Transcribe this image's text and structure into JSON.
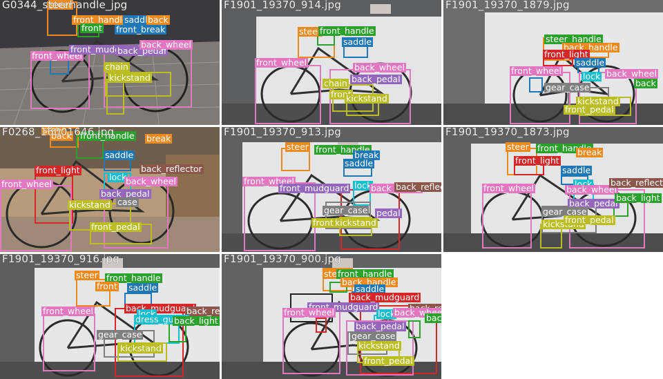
{
  "colors": {
    "steer": "#ef8a1f",
    "front_handle": "#2ca02c",
    "back_handle": "#ef8a1f",
    "saddle": "#1f77b4",
    "front_wheel": "#e377c2",
    "back_wheel": "#e377c2",
    "front_mudguard": "#9467bd",
    "back_mudguard": "#d62728",
    "front_pedal": "#bcbd22",
    "back_pedal": "#9467bd",
    "kickstand": "#bcbd22",
    "chain": "#bcbd22",
    "gear_case": "#7f7f7f",
    "lock": "#17becf",
    "front_light": "#d62728",
    "back_light": "#2ca02c",
    "back_reflector": "#8c564b",
    "back_break": "#1f77b4",
    "front_break": "#1f77b4",
    "dress_guard": "#17becf"
  },
  "tiles": [
    {
      "filename": "G0344_steerhandle_jpg",
      "scene": "street",
      "labels": [
        "steer",
        "front_handle",
        "saddle",
        "front",
        "back",
        "front_break",
        "front_wheel",
        "front_mudguard",
        "back_pedal",
        "back_wheel",
        "chain",
        "kickstand"
      ]
    },
    {
      "filename": "F1901_19370_914.jpg",
      "scene": "wall",
      "labels": [
        "steer",
        "front_handle",
        "saddle",
        "front_wheel",
        "back_wheel",
        "chain",
        "back_pedal",
        "front",
        "kickstand"
      ]
    },
    {
      "filename": "F1901_19370_1879.jpg",
      "scene": "wall",
      "labels": [
        "steer_handle",
        "back_handle",
        "front_light",
        "saddle",
        "front_wheel",
        "lock",
        "back_wheel",
        "back",
        "gear_case",
        "kickstand",
        "front_pedal"
      ]
    },
    {
      "filename": "F0268_16001646.jpg",
      "scene": "shop",
      "labels": [
        "steer",
        "back",
        "front_handle",
        "break",
        "saddle",
        "front_light",
        "back_reflector",
        "front_wheel",
        "lock",
        "back_wheel",
        "kickstand",
        "back_pedal",
        "case",
        "front_pedal"
      ]
    },
    {
      "filename": "F1901_19370_913.jpg",
      "scene": "wall",
      "labels": [
        "steer",
        "front_handle",
        "break",
        "saddle",
        "front_wheel",
        "front_mudguard",
        "lock",
        "back_wheel",
        "back_reflector",
        "gear_case",
        "front",
        "kickstand",
        "pedal"
      ]
    },
    {
      "filename": "F1901_19370_1873.jpg",
      "scene": "wall",
      "labels": [
        "steer",
        "front_handle",
        "front_light",
        "break",
        "saddle",
        "front_wheel",
        "lock",
        "back_wheel",
        "back_reflector",
        "back_pedal",
        "back_light",
        "gear_case",
        "kickstand",
        "front_pedal"
      ]
    },
    {
      "filename": "F1901_19370_916.jpg",
      "scene": "wall",
      "labels": [
        "steer",
        "front_handle",
        "front",
        "saddle",
        "front_wheel",
        "back_mudguard",
        "back_reflector",
        "lock",
        "dress_guard",
        "back_light",
        "gear_case",
        "kickstand"
      ]
    },
    {
      "filename": "F1901_19370_900.jpg",
      "scene": "wall",
      "labels": [
        "steer",
        "front_handle",
        "back_handle",
        "saddle",
        "back_mudguard",
        "front_mudguard",
        "back_reflector",
        "front_wheel",
        "lock",
        "back_wheel",
        "back_light",
        "back_pedal",
        "gear_case",
        "kickstand",
        "front_pedal"
      ]
    }
  ]
}
